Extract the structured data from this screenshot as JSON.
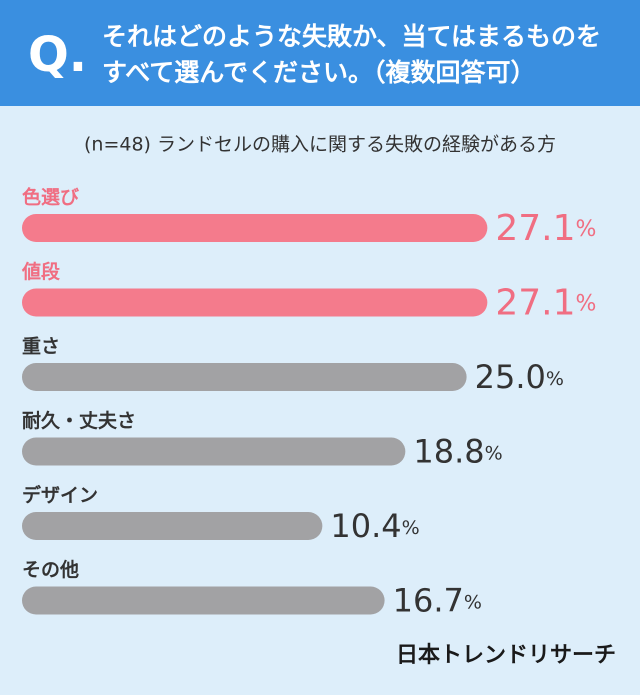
{
  "chart_data": {
    "type": "bar",
    "title": [
      "それはどのような失敗か、当てはまるものを",
      "すべて選んでください。（複数回答可）"
    ],
    "question_mark": "Q.",
    "subtitle": "(n=48) ランドセルの購入に関する失敗の経験がある方",
    "source": "日本トレンドリサーチ",
    "categories": [
      "色選び",
      "値段",
      "重さ",
      "耐久・丈夫さ",
      "デザイン",
      "その他"
    ],
    "values": [
      27.1,
      27.1,
      25.0,
      18.8,
      10.4,
      16.7
    ],
    "value_labels": [
      "27.1%",
      "27.1%",
      "25.0%",
      "18.8%",
      "10.4%",
      "16.7%"
    ],
    "colors": [
      "#f47b8c",
      "#f47b8c",
      "#a2a2a4",
      "#a2a2a4",
      "#a2a2a4",
      "#a2a2a4"
    ],
    "label_colors": [
      "#f06e82",
      "#f06e82",
      "#333333",
      "#333333",
      "#333333",
      "#333333"
    ],
    "xlim": [
      -20,
      30
    ]
  }
}
